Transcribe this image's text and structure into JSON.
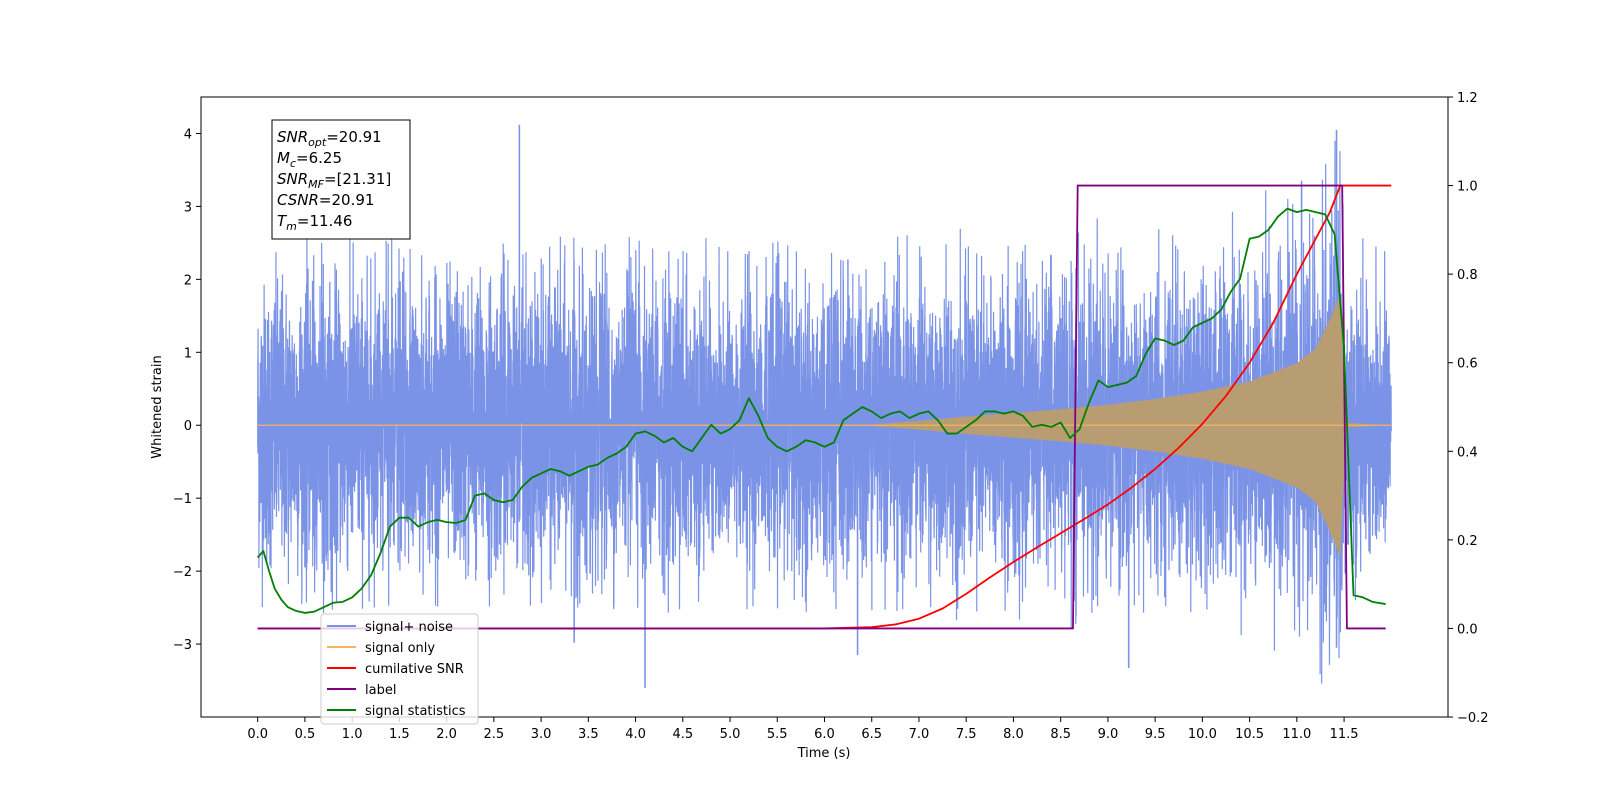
{
  "chart_data": {
    "type": "line",
    "xlabel": "Time (s)",
    "ylabel": "Whitened strain",
    "xlim": [
      -0.6,
      12.6
    ],
    "ylim": [
      -4.0,
      4.5
    ],
    "y2lim": [
      -0.2,
      1.2
    ],
    "x_ticks": [
      0.0,
      0.5,
      1.0,
      1.5,
      2.0,
      2.5,
      3.0,
      3.5,
      4.0,
      4.5,
      5.0,
      5.5,
      6.0,
      6.5,
      7.0,
      7.5,
      8.0,
      8.5,
      9.0,
      9.5,
      10.0,
      10.5,
      11.0,
      11.5
    ],
    "x_tick_labels": [
      "0.0",
      "0.5",
      "1.0",
      "1.5",
      "2.0",
      "2.5",
      "3.0",
      "3.5",
      "4.0",
      "4.5",
      "5.0",
      "5.5",
      "6.0",
      "6.5",
      "7.0",
      "7.5",
      "8.0",
      "8.5",
      "9.0",
      "9.5",
      "10.0",
      "10.5",
      "11.0",
      "11.5"
    ],
    "y_ticks": [
      -3,
      -2,
      -1,
      0,
      1,
      2,
      3,
      4
    ],
    "y_tick_labels": [
      "−3",
      "−2",
      "−1",
      "0",
      "1",
      "2",
      "3",
      "4"
    ],
    "y2_ticks": [
      -0.2,
      0.0,
      0.2,
      0.4,
      0.6,
      0.8,
      1.0,
      1.2
    ],
    "y2_tick_labels": [
      "−0.2",
      "0.0",
      "0.2",
      "0.4",
      "0.6",
      "0.8",
      "1.0",
      "1.2"
    ],
    "legend_position": "lower-left",
    "grid": false,
    "annotation": {
      "lines": [
        {
          "base": "SNR",
          "sub": "opt",
          "value": "=20.91"
        },
        {
          "base": "M",
          "sub": "c",
          "value": "=6.25"
        },
        {
          "base": "SNR",
          "sub": "MF",
          "value": "=[21.31]"
        },
        {
          "base": "CSNR",
          "sub": "",
          "value": "=20.91"
        },
        {
          "base": "T",
          "sub": "m",
          "value": "=11.46"
        }
      ]
    },
    "series": [
      {
        "name": "signal+ noise",
        "color": "#7b93e6",
        "axis": "left",
        "kind": "noise",
        "noise_std": 0.95,
        "x_start": 0.0,
        "x_end": 12.0,
        "peaks": [
          [
            2.77,
            4.12
          ],
          [
            11.42,
            4.05
          ],
          [
            11.05,
            3.35
          ],
          [
            4.1,
            -3.6
          ],
          [
            9.22,
            -3.33
          ],
          [
            6.35,
            -3.15
          ],
          [
            3.35,
            -2.98
          ],
          [
            11.42,
            -3.05
          ]
        ]
      },
      {
        "name": "signal only",
        "color": "#f5b55b",
        "axis": "left",
        "kind": "chirp",
        "merger_time": 11.46,
        "envelope": [
          [
            0.0,
            0.0
          ],
          [
            6.5,
            0.01
          ],
          [
            7.0,
            0.06
          ],
          [
            7.5,
            0.12
          ],
          [
            8.0,
            0.17
          ],
          [
            8.5,
            0.22
          ],
          [
            9.0,
            0.28
          ],
          [
            9.5,
            0.36
          ],
          [
            10.0,
            0.46
          ],
          [
            10.5,
            0.6
          ],
          [
            11.0,
            0.85
          ],
          [
            11.2,
            1.05
          ],
          [
            11.35,
            1.45
          ],
          [
            11.46,
            1.8
          ],
          [
            11.52,
            0.03
          ],
          [
            12.0,
            0.0
          ]
        ]
      },
      {
        "name": "cumilative SNR",
        "color": "#ff0000",
        "axis": "right",
        "x": [
          0.0,
          6.0,
          6.5,
          6.75,
          7.0,
          7.25,
          7.5,
          7.75,
          8.0,
          8.25,
          8.5,
          8.75,
          9.0,
          9.25,
          9.5,
          9.75,
          10.0,
          10.25,
          10.5,
          10.75,
          11.0,
          11.2,
          11.35,
          11.46,
          12.0
        ],
        "y": [
          0.0,
          0.0,
          0.003,
          0.009,
          0.022,
          0.045,
          0.078,
          0.115,
          0.15,
          0.183,
          0.215,
          0.247,
          0.28,
          0.318,
          0.36,
          0.408,
          0.462,
          0.525,
          0.6,
          0.69,
          0.8,
          0.88,
          0.94,
          1.0,
          1.0
        ]
      },
      {
        "name": "label",
        "color": "#800080",
        "axis": "right",
        "x": [
          0.0,
          8.63,
          8.68,
          11.48,
          11.53,
          11.94
        ],
        "y": [
          0.0,
          0.0,
          1.0,
          1.0,
          0.0,
          0.0
        ]
      },
      {
        "name": "signal statistics",
        "color": "#008000",
        "axis": "right",
        "x": [
          0.0,
          0.06,
          0.12,
          0.18,
          0.25,
          0.32,
          0.4,
          0.5,
          0.6,
          0.7,
          0.8,
          0.9,
          1.0,
          1.1,
          1.2,
          1.3,
          1.4,
          1.5,
          1.6,
          1.7,
          1.8,
          1.9,
          2.0,
          2.1,
          2.2,
          2.3,
          2.4,
          2.5,
          2.6,
          2.7,
          2.8,
          2.9,
          3.0,
          3.1,
          3.2,
          3.3,
          3.4,
          3.5,
          3.6,
          3.7,
          3.8,
          3.9,
          4.0,
          4.1,
          4.2,
          4.3,
          4.4,
          4.5,
          4.6,
          4.7,
          4.8,
          4.9,
          5.0,
          5.1,
          5.2,
          5.3,
          5.4,
          5.5,
          5.6,
          5.7,
          5.8,
          5.9,
          6.0,
          6.1,
          6.2,
          6.3,
          6.4,
          6.5,
          6.6,
          6.7,
          6.8,
          6.9,
          7.0,
          7.1,
          7.2,
          7.3,
          7.4,
          7.5,
          7.6,
          7.7,
          7.8,
          7.9,
          8.0,
          8.1,
          8.2,
          8.3,
          8.4,
          8.5,
          8.6,
          8.7,
          8.8,
          8.9,
          9.0,
          9.1,
          9.2,
          9.3,
          9.4,
          9.5,
          9.6,
          9.7,
          9.8,
          9.9,
          10.0,
          10.1,
          10.2,
          10.3,
          10.4,
          10.5,
          10.6,
          10.7,
          10.8,
          10.9,
          11.0,
          11.1,
          11.2,
          11.3,
          11.4,
          11.5,
          11.6,
          11.7,
          11.8,
          11.94
        ],
        "y": [
          0.16,
          0.175,
          0.13,
          0.09,
          0.065,
          0.048,
          0.04,
          0.035,
          0.038,
          0.048,
          0.058,
          0.06,
          0.07,
          0.09,
          0.12,
          0.17,
          0.23,
          0.25,
          0.25,
          0.23,
          0.24,
          0.245,
          0.24,
          0.238,
          0.245,
          0.3,
          0.305,
          0.29,
          0.285,
          0.29,
          0.32,
          0.34,
          0.35,
          0.36,
          0.355,
          0.345,
          0.355,
          0.365,
          0.37,
          0.385,
          0.395,
          0.41,
          0.44,
          0.445,
          0.435,
          0.42,
          0.43,
          0.41,
          0.4,
          0.43,
          0.46,
          0.44,
          0.45,
          0.47,
          0.52,
          0.48,
          0.43,
          0.41,
          0.4,
          0.41,
          0.425,
          0.42,
          0.41,
          0.42,
          0.47,
          0.485,
          0.5,
          0.49,
          0.475,
          0.485,
          0.49,
          0.475,
          0.485,
          0.49,
          0.47,
          0.44,
          0.44,
          0.455,
          0.47,
          0.49,
          0.49,
          0.485,
          0.49,
          0.48,
          0.455,
          0.46,
          0.455,
          0.465,
          0.43,
          0.45,
          0.51,
          0.56,
          0.545,
          0.55,
          0.555,
          0.57,
          0.62,
          0.655,
          0.65,
          0.64,
          0.65,
          0.68,
          0.69,
          0.7,
          0.72,
          0.76,
          0.79,
          0.88,
          0.885,
          0.9,
          0.93,
          0.948,
          0.94,
          0.945,
          0.94,
          0.935,
          0.89,
          0.63,
          0.075,
          0.07,
          0.06,
          0.055
        ]
      }
    ]
  }
}
